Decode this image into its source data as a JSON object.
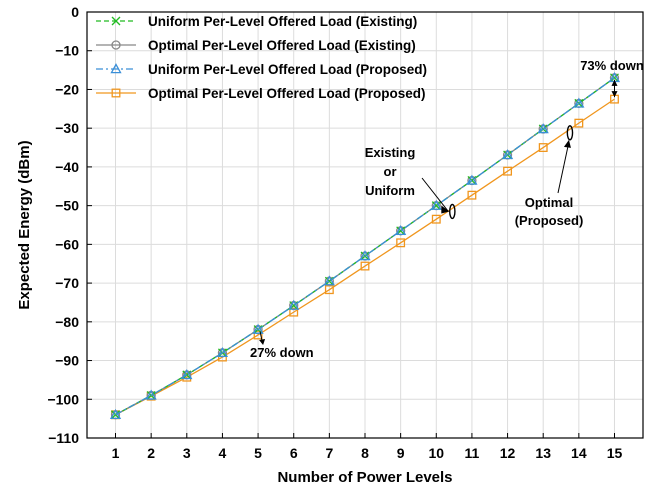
{
  "chart_data": {
    "type": "line",
    "xlabel": "Number of Power Levels",
    "ylabel": "Expected Energy (dBm)",
    "xlim": [
      0.2,
      15.8
    ],
    "ylim": [
      -110,
      0
    ],
    "xticks": [
      1,
      2,
      3,
      4,
      5,
      6,
      7,
      8,
      9,
      10,
      11,
      12,
      13,
      14,
      15
    ],
    "yticks": [
      0,
      -10,
      -20,
      -30,
      -40,
      -50,
      -60,
      -70,
      -80,
      -90,
      -100,
      -110
    ],
    "grid": true,
    "legend_position": "top-left",
    "x": [
      1,
      2,
      3,
      4,
      5,
      6,
      7,
      8,
      9,
      10,
      11,
      12,
      13,
      14,
      15
    ],
    "series": [
      {
        "name": "Uniform Per-Level Offered Load (Existing)",
        "color": "#22bb22",
        "dash": "dashed",
        "marker": "x",
        "values": [
          -104,
          -99,
          -93.7,
          -88,
          -82,
          -75.8,
          -69.5,
          -63,
          -56.5,
          -50,
          -43.5,
          -36.9,
          -30.2,
          -23.6,
          -17
        ]
      },
      {
        "name": "Optimal Per-Level Offered Load (Existing)",
        "color": "#888888",
        "dash": "solid",
        "marker": "circle",
        "values": [
          -104,
          -99,
          -93.7,
          -88,
          -82,
          -75.8,
          -69.5,
          -63,
          -56.5,
          -50,
          -43.5,
          -36.9,
          -30.2,
          -23.6,
          -17
        ]
      },
      {
        "name": "Uniform Per-Level Offered Load (Proposed)",
        "color": "#3a8fd8",
        "dash": "dashdot",
        "marker": "triangle",
        "values": [
          -104,
          -99,
          -93.7,
          -88,
          -82,
          -75.8,
          -69.5,
          -63,
          -56.5,
          -50,
          -43.5,
          -36.9,
          -30.2,
          -23.6,
          -17
        ]
      },
      {
        "name": "Optimal Per-Level Offered Load (Proposed)",
        "color": "#f0961e",
        "dash": "solid",
        "marker": "square",
        "values": [
          -104,
          -99.2,
          -94.3,
          -89.1,
          -83.4,
          -77.5,
          -71.7,
          -65.6,
          -59.6,
          -53.5,
          -47.3,
          -41.1,
          -35,
          -28.7,
          -22.5
        ]
      }
    ],
    "annotations": {
      "down_73": "73% down",
      "down_27": "27% down",
      "existing_or_uniform": [
        "Existing",
        "or",
        "Uniform"
      ],
      "optimal_proposed": [
        "Optimal",
        "(Proposed)"
      ]
    }
  }
}
